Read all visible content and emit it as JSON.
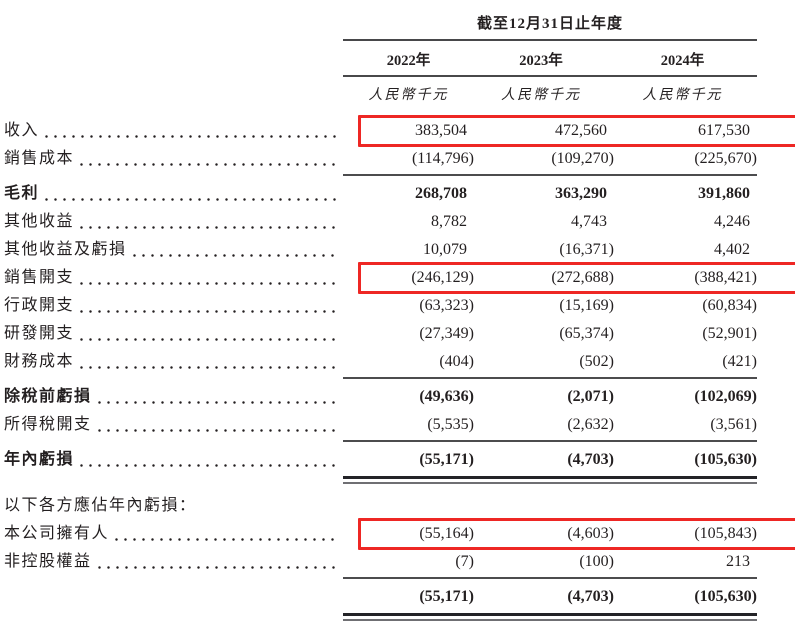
{
  "header": {
    "period_title": "截至12月31日止年度",
    "years": [
      "2022年",
      "2023年",
      "2024年"
    ],
    "unit": "人民幣千元"
  },
  "rows": [
    {
      "label": "收入",
      "leaders": true,
      "values": [
        "383,504",
        "472,560",
        "617,530"
      ],
      "highlight": true
    },
    {
      "label": "銷售成本",
      "leaders": true,
      "values": [
        "(114,796)",
        "(109,270)",
        "(225,670)"
      ],
      "rule_below": "single"
    },
    {
      "label": "毛利",
      "leaders": true,
      "bold": true,
      "values": [
        "268,708",
        "363,290",
        "391,860"
      ]
    },
    {
      "label": "其他收益",
      "leaders": true,
      "values": [
        "8,782",
        "4,743",
        "4,246"
      ]
    },
    {
      "label": "其他收益及虧損",
      "leaders": true,
      "values": [
        "10,079",
        "(16,371)",
        "4,402"
      ]
    },
    {
      "label": "銷售開支",
      "leaders": true,
      "values": [
        "(246,129)",
        "(272,688)",
        "(388,421)"
      ],
      "highlight": true
    },
    {
      "label": "行政開支",
      "leaders": true,
      "values": [
        "(63,323)",
        "(15,169)",
        "(60,834)"
      ]
    },
    {
      "label": "研發開支",
      "leaders": true,
      "values": [
        "(27,349)",
        "(65,374)",
        "(52,901)"
      ]
    },
    {
      "label": "財務成本",
      "leaders": true,
      "values": [
        "(404)",
        "(502)",
        "(421)"
      ],
      "rule_below": "single"
    },
    {
      "label": "除稅前虧損",
      "leaders": true,
      "bold": true,
      "values": [
        "(49,636)",
        "(2,071)",
        "(102,069)"
      ]
    },
    {
      "label": "所得稅開支",
      "leaders": true,
      "values": [
        "(5,535)",
        "(2,632)",
        "(3,561)"
      ],
      "rule_below": "single"
    },
    {
      "label": "年內虧損",
      "leaders": true,
      "bold": true,
      "values": [
        "(55,171)",
        "(4,703)",
        "(105,630)"
      ],
      "rule_below": "double"
    },
    {
      "label": "以下各方應佔年內虧損：",
      "leaders": false,
      "values": [
        "",
        "",
        ""
      ],
      "section_gap": true
    },
    {
      "label": "本公司擁有人",
      "leaders": true,
      "values": [
        "(55,164)",
        "(4,603)",
        "(105,843)"
      ],
      "highlight": true
    },
    {
      "label": "非控股權益",
      "leaders": true,
      "values": [
        "(7)",
        "(100)",
        "213"
      ],
      "rule_below": "single"
    },
    {
      "label": "",
      "leaders": false,
      "bold": true,
      "values": [
        "(55,171)",
        "(4,703)",
        "(105,630)"
      ],
      "rule_below": "double"
    }
  ],
  "colors": {
    "text": "#231f20",
    "rule": "#4c4c4e",
    "highlight_border": "#ee2724"
  }
}
